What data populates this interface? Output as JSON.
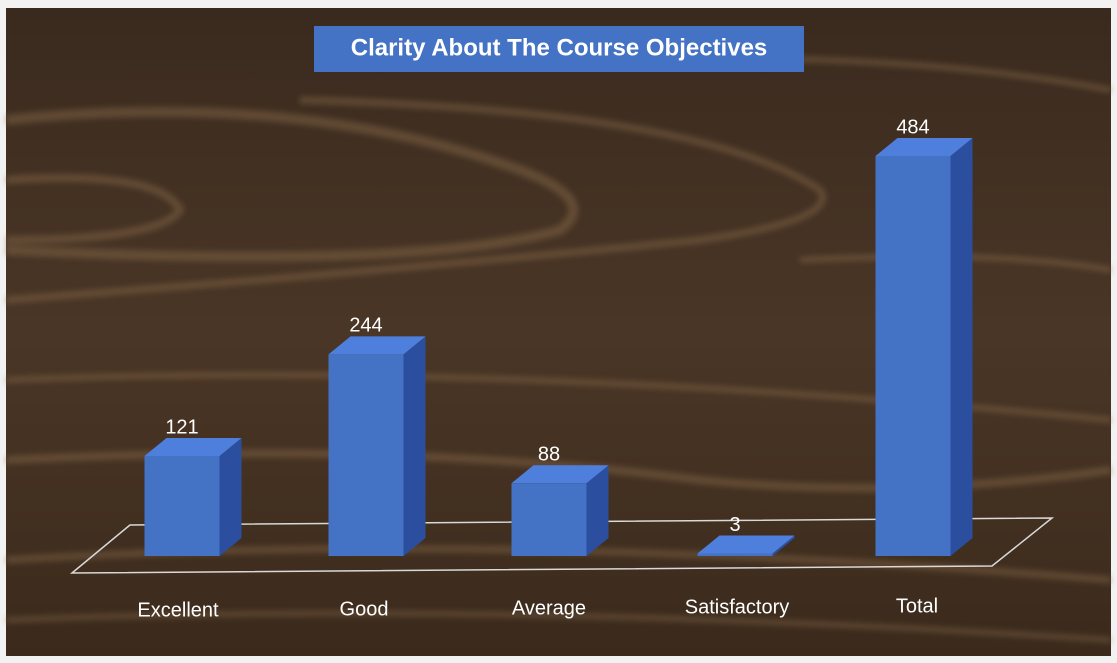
{
  "chart_data": {
    "type": "bar3d",
    "title": "Clarity About The Course Objectives",
    "categories": [
      "Excellent",
      "Good",
      "Average",
      "Satisfactory",
      "Total"
    ],
    "values": [
      121,
      244,
      88,
      3,
      484
    ],
    "color": "#4472c4"
  }
}
